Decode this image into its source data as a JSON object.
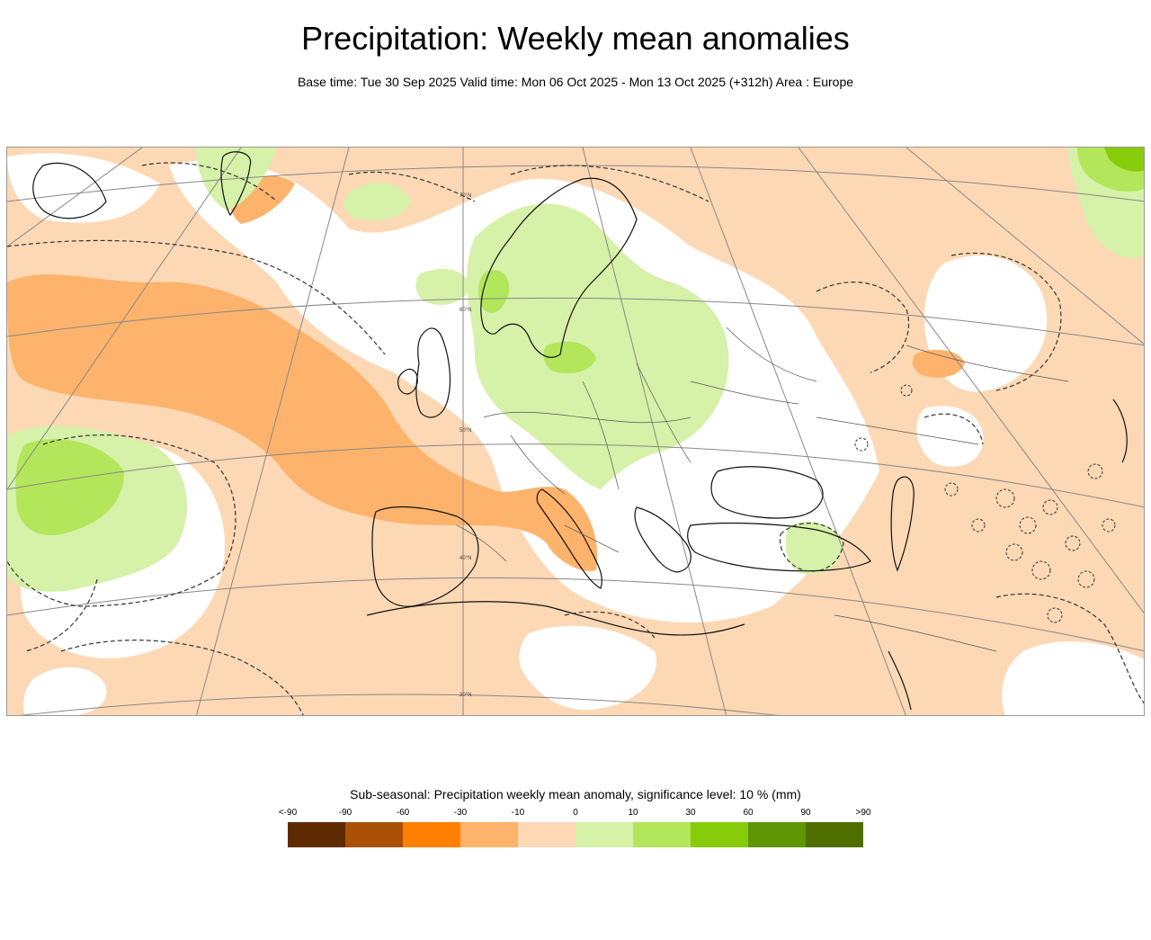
{
  "header": {
    "title": "Precipitation: Weekly mean anomalies",
    "subtitle": "Base time: Tue 30 Sep 2025 Valid time: Mon 06 Oct 2025 - Mon 13 Oct 2025 (+312h) Area : Europe"
  },
  "map": {
    "area": "Europe",
    "latitude_labels": [
      "70°N",
      "60°N",
      "50°N",
      "40°N",
      "30°N"
    ],
    "colors": {
      "dry_moderate": "#fdb36b",
      "dry_light": "#fdd8b4",
      "neutral": "#ffffff",
      "wet_light": "#d6f1a8",
      "wet_moderate": "#b3e65a",
      "wet_strong": "#86cc0a",
      "coastline": "#111111",
      "borders": "#555555",
      "graticule": "#888888",
      "significance_contour": "#333333"
    }
  },
  "legend": {
    "title": "Sub-seasonal: Precipitation weekly mean anomaly, significance level: 10 % (mm)",
    "ticks": [
      "<-90",
      "-90",
      "-60",
      "-30",
      "-10",
      "0",
      "10",
      "30",
      "60",
      "90",
      ">90"
    ],
    "colors": [
      "#5e2b00",
      "#a95005",
      "#ff7f00",
      "#fdb36b",
      "#fdd8b4",
      "#d6f1a8",
      "#b3e65a",
      "#86cc0a",
      "#5f9605",
      "#4f6e00"
    ]
  }
}
